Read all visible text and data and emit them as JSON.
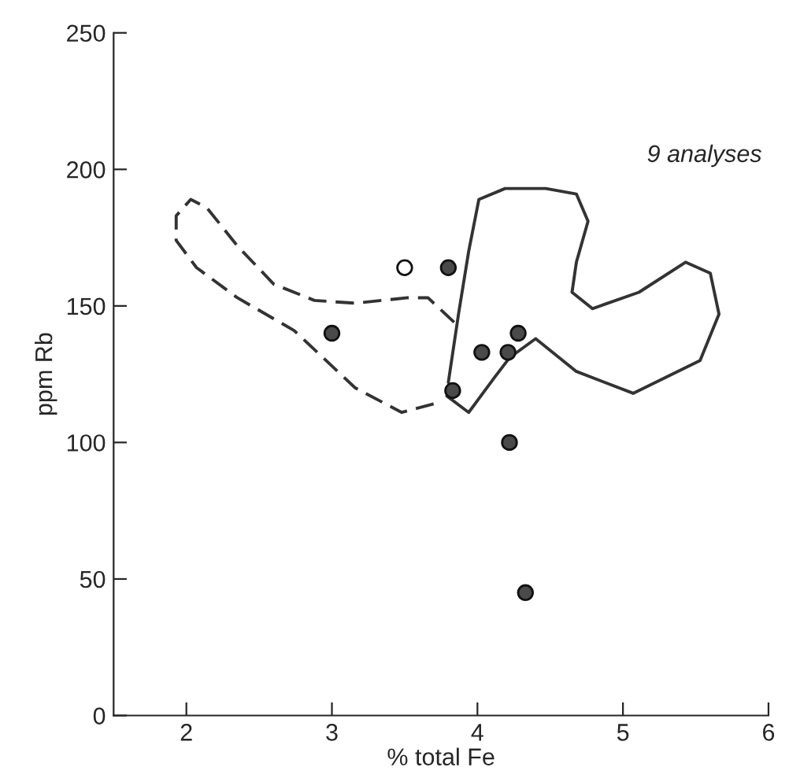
{
  "chart_data": {
    "type": "scatter",
    "xlabel": "% total Fe",
    "ylabel": "ppm Rb",
    "annotations": [
      "9 analyses"
    ],
    "xlim": [
      1.5,
      6
    ],
    "ylim": [
      0,
      250
    ],
    "xticks": [
      2,
      3,
      4,
      5,
      6
    ],
    "yticks": [
      0,
      50,
      100,
      150,
      200,
      250
    ],
    "grid": false,
    "marker": "circle",
    "series": [
      {
        "type": "scatter",
        "color": "#4a4a4a",
        "x": [
          3.8,
          3.0,
          4.03,
          4.21,
          4.28,
          3.83,
          4.22,
          4.33
        ],
        "values": [
          164,
          140,
          133,
          133,
          140,
          119,
          100,
          45
        ]
      },
      {
        "type": "scatter",
        "color": "#ffffff",
        "x": [
          3.5
        ],
        "values": [
          164
        ]
      },
      {
        "type": "line",
        "color": "#333333",
        "line_style": "dashed",
        "marker": "none",
        "x": [
          3.84,
          3.66,
          3.52,
          3.16,
          2.88,
          2.6,
          2.35,
          2.14,
          2.03,
          1.93,
          1.93,
          2.07,
          2.35,
          2.74,
          3.16,
          3.48,
          3.76
        ],
        "values": [
          144,
          153,
          153,
          151,
          152,
          158,
          172,
          186,
          189,
          183,
          174,
          164,
          153,
          141,
          120,
          111,
          115
        ]
      },
      {
        "type": "line",
        "color": "#333333",
        "line_style": "solid",
        "marker": "none",
        "x": [
          3.8,
          3.87,
          3.94,
          4.01,
          4.19,
          4.47,
          4.68,
          4.76,
          4.68,
          4.65,
          4.79,
          5.11,
          5.43,
          5.6,
          5.66,
          5.53,
          5.07,
          4.68,
          4.4,
          4.22,
          4.12,
          3.94,
          3.79
        ],
        "values": [
          122,
          147,
          170,
          189,
          193,
          193,
          191,
          181,
          166,
          155,
          149,
          155,
          166,
          162,
          147,
          130,
          118,
          126,
          138,
          131,
          124,
          111,
          117
        ]
      }
    ]
  }
}
